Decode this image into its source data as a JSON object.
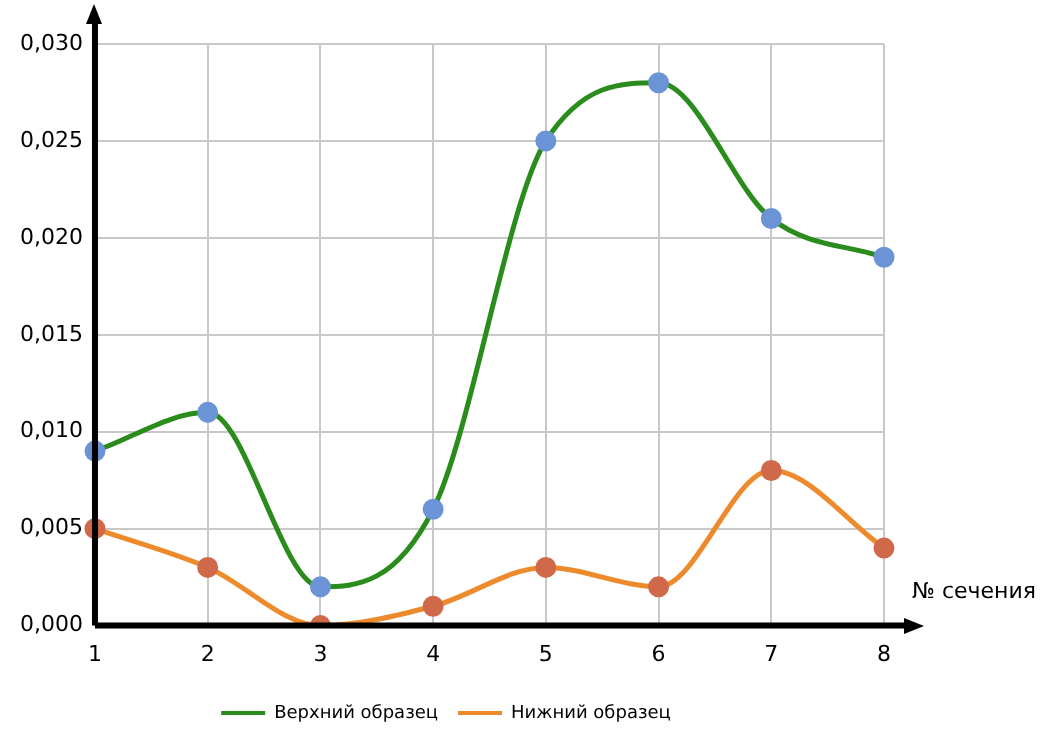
{
  "chart_data": {
    "type": "line",
    "xlabel": "№ сечения",
    "categories": [
      "1",
      "2",
      "3",
      "4",
      "5",
      "6",
      "7",
      "8"
    ],
    "series": [
      {
        "name": "Верхний образец",
        "color": "#2a8c1c",
        "colors": [
          "#6b94d6",
          "#6b94d6",
          "#6b94d6",
          "#6b94d6",
          "#6b94d6",
          "#6b94d6",
          "#6b94d6",
          "#6b94d6"
        ],
        "values": [
          0.009,
          0.011,
          0.002,
          0.006,
          0.025,
          0.028,
          0.021,
          0.019
        ]
      },
      {
        "name": "Нижний образец",
        "color": "#ed8a2c",
        "colors": [
          "#d0694a",
          "#d0694a",
          "#d0694a",
          "#d0694a",
          "#d0694a",
          "#d0694a",
          "#d0694a",
          "#d0694a"
        ],
        "values": [
          0.005,
          0.003,
          0.0,
          0.001,
          0.003,
          0.002,
          0.008,
          0.004
        ]
      }
    ],
    "ylim": [
      0,
      0.03
    ],
    "yticks": [
      {
        "value": 0,
        "label": "0,000"
      },
      {
        "value": 0.005,
        "label": "0,005"
      },
      {
        "value": 0.01,
        "label": "0,010"
      },
      {
        "value": 0.015,
        "label": "0,015"
      },
      {
        "value": 0.02,
        "label": "0,020"
      },
      {
        "value": 0.025,
        "label": "0,025"
      },
      {
        "value": 0.03,
        "label": "0,030"
      }
    ],
    "grid": true,
    "legend": "bottom",
    "marker": "circle",
    "line_style": "solid"
  }
}
